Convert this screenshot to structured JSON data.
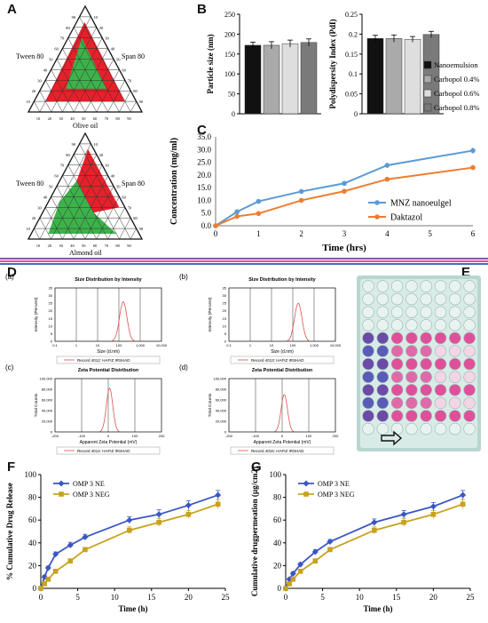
{
  "panels": {
    "A": {
      "label": "A",
      "top_chart": {
        "left_label": "Tween 80",
        "right_label": "Span 80",
        "bottom_label": "Olive oil"
      },
      "bottom_chart": {
        "left_label": "Tween 80",
        "right_label": "Span 80",
        "bottom_label": "Almond oil"
      },
      "tick_labels": [
        "10",
        "20",
        "30",
        "40",
        "50",
        "60",
        "70",
        "80",
        "90"
      ]
    },
    "B": {
      "label": "B"
    },
    "C": {
      "label": "C"
    },
    "D": {
      "label": "D",
      "sub": [
        {
          "tag": "(a)",
          "title": "Size Distribution by Intensity",
          "ylabel": "Intensity (Percent)",
          "xlabel": "Size (d.nm)",
          "legend": "Record 4012: HAFIZ IRSHAD"
        },
        {
          "tag": "(b)",
          "title": "Size Distribution by Intensity",
          "ylabel": "Intensity (Percent)",
          "xlabel": "Size (d.nm)",
          "legend": "Record 4013: HAFIZ IRSHAD"
        },
        {
          "tag": "(c)",
          "title": "Zeta Potential Distribution",
          "ylabel": "Total Counts",
          "xlabel": "Apparent Zeta Potential (mV)",
          "legend": "Record 4014: HAFIZ IRSHAD"
        },
        {
          "tag": "(d)",
          "title": "Zeta Potential Distribution",
          "ylabel": "Total Counts",
          "xlabel": "Apparent Zeta Potential (mV)",
          "legend": "Record 4015: HAFIZ IRSHAD"
        }
      ]
    },
    "E": {
      "label": "E"
    },
    "F": {
      "label": "F"
    },
    "G": {
      "label": "G"
    }
  },
  "chart_data": [
    {
      "id": "B1",
      "type": "bar",
      "ylabel": "Particle size (nm)",
      "ylim": [
        0,
        250
      ],
      "yticks": [
        0,
        50,
        100,
        150,
        200,
        250
      ],
      "series": [
        {
          "name": "Nanoemulsion",
          "values": [
            172
          ],
          "error": [
            8
          ],
          "color": "#111111"
        },
        {
          "name": "Carbopol 0.4%",
          "values": [
            172
          ],
          "error": [
            9
          ],
          "color": "#aaaaaa"
        },
        {
          "name": "Carbopol 0.6%",
          "values": [
            176
          ],
          "error": [
            9
          ],
          "color": "#dedede"
        },
        {
          "name": "Carbopol 0.8%",
          "values": [
            179
          ],
          "error": [
            9
          ],
          "color": "#7a7a7a"
        }
      ]
    },
    {
      "id": "B2",
      "type": "bar",
      "ylabel": "Polydispersity Index (PdI)",
      "ylim": [
        0,
        0.25
      ],
      "yticks": [
        0,
        0.05,
        0.1,
        0.15,
        0.2,
        0.25
      ],
      "series": [
        {
          "name": "Nanoemulsion",
          "values": [
            0.189
          ],
          "error": [
            0.008
          ],
          "color": "#111111"
        },
        {
          "name": "Carbopol 0.4%",
          "values": [
            0.189
          ],
          "error": [
            0.009
          ],
          "color": "#aaaaaa"
        },
        {
          "name": "Carbopol 0.6%",
          "values": [
            0.187
          ],
          "error": [
            0.007
          ],
          "color": "#dedede"
        },
        {
          "name": "Carbopol 0.8%",
          "values": [
            0.199
          ],
          "error": [
            0.008
          ],
          "color": "#7a7a7a"
        }
      ],
      "legend": [
        "Nanoemulsion",
        "Carbopol 0.4%",
        "Carbopol 0.6%",
        "Carbopol 0.8%"
      ]
    },
    {
      "id": "C",
      "type": "line",
      "xlabel": "Time  (hrs)",
      "ylabel": "Concentration (mg/ml)",
      "xlim": [
        0,
        6
      ],
      "ylim": [
        0,
        35
      ],
      "xticks": [
        0,
        1,
        2,
        3,
        4,
        5,
        6
      ],
      "yticks": [
        0.0,
        5.0,
        10.0,
        15.0,
        20.0,
        25.0,
        30.0,
        35.0
      ],
      "series": [
        {
          "name": "MNZ nanoeulgel",
          "color": "#5b9bd5",
          "x": [
            0,
            0.5,
            1,
            2,
            3,
            4,
            6
          ],
          "y": [
            0,
            5.5,
            9.6,
            13.5,
            16.7,
            23.8,
            29.6
          ],
          "err": [
            0,
            0.4,
            0.4,
            0.4,
            0.6,
            1.0,
            1.2
          ]
        },
        {
          "name": "Daktazol",
          "color": "#ed7d31",
          "x": [
            0,
            0.5,
            1,
            2,
            3,
            4,
            6
          ],
          "y": [
            0,
            3.7,
            4.8,
            10.0,
            13.6,
            18.3,
            22.9
          ],
          "err": [
            0,
            0.3,
            0.3,
            0.4,
            0.5,
            0.8,
            1.0
          ]
        }
      ]
    },
    {
      "id": "D-a",
      "type": "line",
      "xlabel": "Size (d.nm)",
      "ylabel": "Intensity (Percent)",
      "xscale": "log",
      "xticklabels": [
        "0.1",
        "1",
        "10",
        "100",
        "1,000",
        "10,000"
      ],
      "yticks": [
        0,
        5,
        10,
        15,
        20,
        25,
        30,
        35
      ],
      "ylim": [
        0,
        35
      ],
      "peak": {
        "center": 160,
        "height": 26
      }
    },
    {
      "id": "D-b",
      "type": "line",
      "xlabel": "Size (d.nm)",
      "ylabel": "Intensity (Percent)",
      "xscale": "log",
      "xticklabels": [
        "0.1",
        "1",
        "10",
        "100",
        "1,000",
        "10,000"
      ],
      "yticks": [
        0,
        5,
        10,
        15,
        20,
        25,
        30,
        35
      ],
      "ylim": [
        0,
        35
      ],
      "peak": {
        "center": 180,
        "height": 25
      }
    },
    {
      "id": "D-c",
      "type": "line",
      "xlabel": "Apparent Zeta Potential (mV)",
      "ylabel": "Total Counts",
      "xlim": [
        -200,
        200
      ],
      "xticks": [
        -200,
        -100,
        0,
        100,
        200
      ],
      "ylim": [
        0,
        100000
      ],
      "yticklabels": [
        "0",
        "20,000",
        "40,000",
        "60,000",
        "80,000",
        "100,000"
      ],
      "peak": {
        "center": 5,
        "height": 82000
      }
    },
    {
      "id": "D-d",
      "type": "line",
      "xlabel": "Apparent Zeta Potential (mV)",
      "ylabel": "Total Counts",
      "xlim": [
        -200,
        200
      ],
      "xticks": [
        -200,
        -100,
        0,
        100,
        200
      ],
      "ylim": [
        0,
        100000
      ],
      "yticklabels": [
        "0",
        "20,000",
        "40,000",
        "60,000",
        "80,000",
        "100,000"
      ],
      "peak": {
        "center": 8,
        "height": 70000
      }
    },
    {
      "id": "F",
      "type": "line",
      "xlabel": "Time (h)",
      "ylabel": "% Cumulative Drug Release",
      "xlim": [
        0,
        25
      ],
      "ylim": [
        0,
        100
      ],
      "xticks": [
        0,
        5,
        10,
        15,
        20,
        25
      ],
      "yticks": [
        0,
        20,
        40,
        60,
        80,
        100
      ],
      "series": [
        {
          "name": "OMP 3 NE",
          "color": "#3a56c4",
          "marker": "diamond",
          "x": [
            0,
            0.5,
            1,
            2,
            4,
            6,
            12,
            16,
            20,
            24
          ],
          "y": [
            0,
            10,
            18,
            30,
            38,
            45,
            60,
            65,
            73,
            82
          ],
          "err": [
            0,
            1.5,
            1.5,
            2,
            2.5,
            2.5,
            3,
            4,
            4,
            4
          ]
        },
        {
          "name": "OMP 3 NEG",
          "color": "#c8a21e",
          "marker": "square",
          "x": [
            0,
            0.5,
            1,
            2,
            4,
            6,
            12,
            16,
            20,
            24
          ],
          "y": [
            0,
            4,
            8,
            15,
            24,
            34,
            51,
            58,
            65,
            74
          ],
          "err": [
            0,
            1,
            1.5,
            1.5,
            2,
            2,
            3,
            3.5,
            3.5,
            4
          ]
        }
      ]
    },
    {
      "id": "G",
      "type": "line",
      "xlabel": "Time (h)",
      "ylabel": "Cumulative drugpermeation (µg/cm2)",
      "xlim": [
        0,
        25
      ],
      "ylim": [
        0,
        100
      ],
      "xticks": [
        0,
        5,
        10,
        15,
        20,
        25
      ],
      "yticks": [
        0,
        20,
        40,
        60,
        80,
        100
      ],
      "series": [
        {
          "name": "OMP 3 NE",
          "color": "#3a56c4",
          "marker": "diamond",
          "x": [
            0,
            0.5,
            1,
            2,
            4,
            6,
            12,
            16,
            20,
            24
          ],
          "y": [
            0,
            8,
            13,
            21,
            32,
            41,
            58,
            65,
            72,
            82
          ],
          "err": [
            0,
            1,
            1.5,
            1.5,
            2,
            2,
            3,
            3.5,
            3.5,
            4
          ]
        },
        {
          "name": "OMP 3 NEG",
          "color": "#c8a21e",
          "marker": "square",
          "x": [
            0,
            0.5,
            1,
            2,
            4,
            6,
            12,
            16,
            20,
            24
          ],
          "y": [
            0,
            4,
            8,
            15,
            24,
            34,
            51,
            58,
            65,
            74
          ],
          "err": [
            0,
            1,
            1.5,
            1.5,
            2,
            2,
            3,
            3.5,
            3.5,
            4
          ]
        }
      ]
    }
  ]
}
